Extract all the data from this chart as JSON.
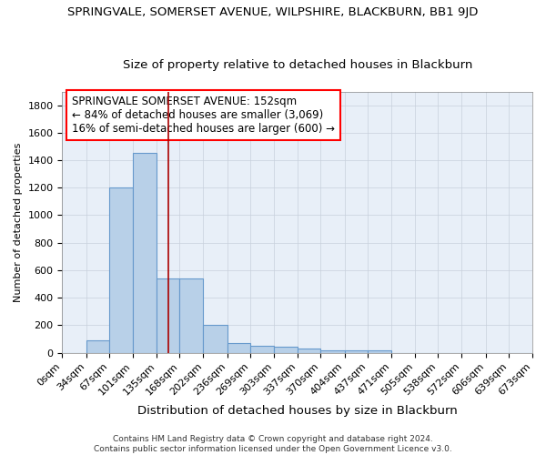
{
  "title": "SPRINGVALE, SOMERSET AVENUE, WILPSHIRE, BLACKBURN, BB1 9JD",
  "subtitle": "Size of property relative to detached houses in Blackburn",
  "xlabel": "Distribution of detached houses by size in Blackburn",
  "ylabel": "Number of detached properties",
  "bin_edges": [
    0,
    34,
    67,
    101,
    135,
    168,
    202,
    236,
    269,
    303,
    337,
    370,
    404,
    437,
    471,
    505,
    538,
    572,
    606,
    639,
    673
  ],
  "bar_heights": [
    0,
    90,
    1200,
    1450,
    540,
    540,
    200,
    70,
    50,
    45,
    30,
    20,
    15,
    15,
    0,
    0,
    0,
    0,
    0,
    0
  ],
  "bar_color": "#b8d0e8",
  "bar_edgecolor": "#6699cc",
  "bg_color": "#e8eff8",
  "grid_color": "#c8d0dc",
  "red_line_x": 152,
  "red_line_color": "#aa0000",
  "annotation_line1": "SPRINGVALE SOMERSET AVENUE: 152sqm",
  "annotation_line2": "← 84% of detached houses are smaller (3,069)",
  "annotation_line3": "16% of semi-detached houses are larger (600) →",
  "ylim": [
    0,
    1900
  ],
  "yticks": [
    0,
    200,
    400,
    600,
    800,
    1000,
    1200,
    1400,
    1600,
    1800
  ],
  "title_fontsize": 9.5,
  "subtitle_fontsize": 9.5,
  "xlabel_fontsize": 9.5,
  "ylabel_fontsize": 8,
  "tick_fontsize": 8,
  "annotation_fontsize": 8.5,
  "footer_fontsize": 6.5,
  "footer_line1": "Contains HM Land Registry data © Crown copyright and database right 2024.",
  "footer_line2": "Contains public sector information licensed under the Open Government Licence v3.0."
}
